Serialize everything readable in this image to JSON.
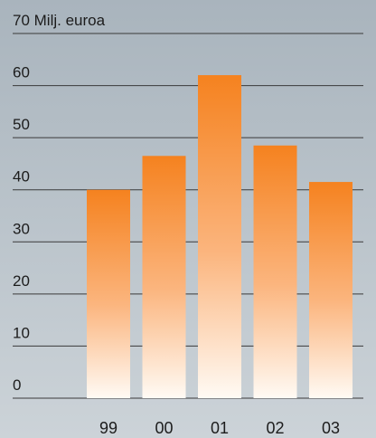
{
  "chart_data": {
    "type": "bar",
    "unit_label": "Milj. euroa",
    "categories": [
      "99",
      "00",
      "01",
      "02",
      "03"
    ],
    "values": [
      40,
      46.5,
      62,
      48.5,
      41.5
    ],
    "ylim": [
      0,
      70
    ],
    "yticks": [
      0,
      10,
      20,
      30,
      40,
      50,
      60,
      70
    ],
    "grid": true,
    "colors": {
      "bar_top": "#f5821f",
      "bar_bottom": "#fffaf4",
      "gridline": "#3a3a3a",
      "text": "#1c1c1c"
    }
  }
}
